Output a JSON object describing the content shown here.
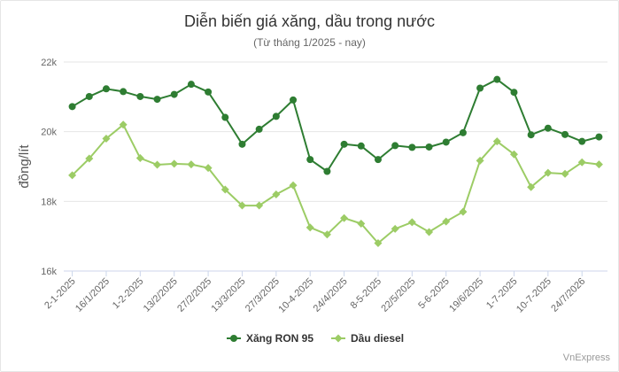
{
  "chart_data": {
    "type": "line",
    "title": "Diễn biến giá xăng, dầu trong nước",
    "subtitle": "(Từ tháng 1/2025 - nay)",
    "ylabel": "đồng/lít",
    "xlabel": "",
    "ylim": [
      16000,
      22000
    ],
    "yticks": [
      16000,
      18000,
      20000,
      22000
    ],
    "ytick_labels": [
      "16k",
      "18k",
      "20k",
      "22k"
    ],
    "grid": "horizontal",
    "legend_position": "bottom-center",
    "credits": "VnExpress",
    "x_tick_labels": [
      {
        "index": 0,
        "label": "2-1-2025"
      },
      {
        "index": 2,
        "label": "16/1/2025"
      },
      {
        "index": 4,
        "label": "1-2-2025"
      },
      {
        "index": 6,
        "label": "13/2/2025"
      },
      {
        "index": 8,
        "label": "27/2/2025"
      },
      {
        "index": 10,
        "label": "13/3/2025"
      },
      {
        "index": 12,
        "label": "27/3/2025"
      },
      {
        "index": 14,
        "label": "10-4-2025"
      },
      {
        "index": 16,
        "label": "24/4/2025"
      },
      {
        "index": 18,
        "label": "8-5-2025"
      },
      {
        "index": 20,
        "label": "22/5/2025"
      },
      {
        "index": 22,
        "label": "5-6-2025"
      },
      {
        "index": 24,
        "label": "19/6/2025"
      },
      {
        "index": 26,
        "label": "1-7-2025"
      },
      {
        "index": 28,
        "label": "10-7-2025"
      },
      {
        "index": 30,
        "label": "24/7/2026"
      }
    ],
    "series": [
      {
        "name": "Xăng RON 95",
        "color": "#2e7d32",
        "marker": "circle",
        "values": [
          20720,
          21010,
          21230,
          21150,
          21010,
          20930,
          21070,
          21360,
          21140,
          20410,
          19640,
          20070,
          20440,
          20910,
          19200,
          18860,
          19640,
          19590,
          19200,
          19600,
          19550,
          19560,
          19700,
          19970,
          21250,
          21500,
          21130,
          19910,
          20100,
          19920,
          19720,
          19850
        ]
      },
      {
        "name": "Dầu diesel",
        "color": "#9ccc65",
        "marker": "diamond",
        "values": [
          18750,
          19230,
          19800,
          20200,
          19240,
          19050,
          19080,
          19060,
          18960,
          18340,
          17880,
          17880,
          18200,
          18460,
          17250,
          17050,
          17520,
          17360,
          16800,
          17210,
          17400,
          17120,
          17420,
          17700,
          19170,
          19720,
          19350,
          18410,
          18820,
          18790,
          19120,
          19060
        ]
      }
    ]
  }
}
